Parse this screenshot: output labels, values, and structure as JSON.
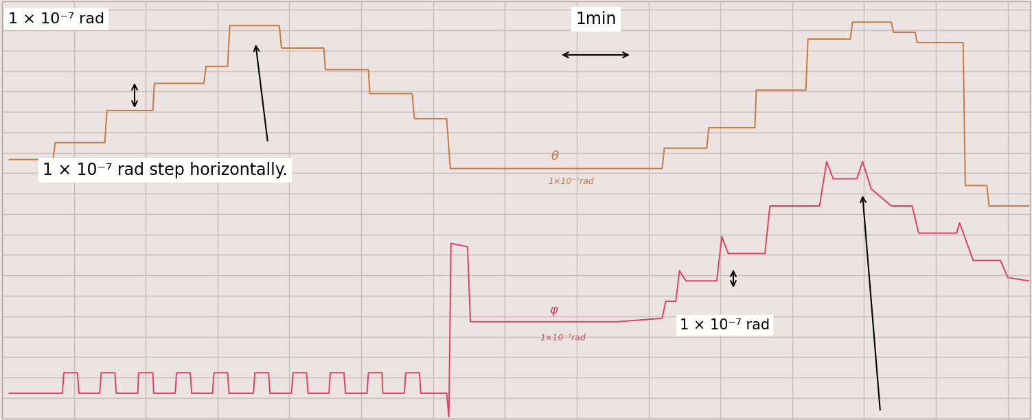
{
  "chart_data": {
    "type": "line",
    "xlim": [
      0,
      14.31
    ],
    "ylim": [
      0,
      2.04e-06
    ],
    "xticks": [
      0,
      1,
      2,
      3,
      4,
      5,
      6,
      7,
      8,
      9,
      10,
      11,
      12,
      13,
      14
    ],
    "yticks": [
      0,
      1e-07,
      2e-07,
      3e-07,
      4e-07,
      5e-07,
      6e-07,
      7e-07,
      8e-07,
      9e-07,
      1e-06,
      1.1e-06,
      1.2e-06,
      1.3e-06,
      1.4e-06,
      1.5e-06,
      1.6e-06,
      1.7e-06,
      1.8e-06,
      1.9e-06,
      2e-06
    ],
    "grid": true,
    "tick_labels": false,
    "annotations": [
      "1 × 10⁻⁷ rad",
      "1min",
      "1 × 10⁻⁷ rad step horizontally.",
      "1×10⁻⁷rad",
      "1×10⁻⁷rad",
      "1 × 10⁻⁷ rad"
    ],
    "series": [
      {
        "name": "θ",
        "color": "#c8783a",
        "x": [
          0.1,
          0.71,
          0.74,
          1.43,
          1.46,
          2.1,
          2.12,
          2.81,
          2.84,
          3.14,
          3.17,
          3.86,
          3.89,
          4.48,
          4.5,
          5.1,
          5.12,
          5.71,
          5.74,
          6.19,
          6.24,
          9.19,
          9.22,
          9.81,
          9.84,
          10.48,
          10.5,
          11.19,
          11.22,
          11.81,
          11.84,
          12.38,
          12.41,
          12.71,
          12.74,
          13.38,
          13.41,
          13.71,
          13.74,
          14.29
        ],
        "values": [
          1.267e-06,
          1.267e-06,
          1.35e-06,
          1.35e-06,
          1.507e-06,
          1.507e-06,
          1.64e-06,
          1.64e-06,
          1.723e-06,
          1.723e-06,
          1.923e-06,
          1.923e-06,
          1.813e-06,
          1.813e-06,
          1.707e-06,
          1.707e-06,
          1.59e-06,
          1.59e-06,
          1.467e-06,
          1.467e-06,
          1.223e-06,
          1.223e-06,
          1.323e-06,
          1.323e-06,
          1.423e-06,
          1.423e-06,
          1.607e-06,
          1.607e-06,
          1.857e-06,
          1.857e-06,
          1.94e-06,
          1.94e-06,
          1.89e-06,
          1.89e-06,
          1.84e-06,
          1.84e-06,
          1.14e-06,
          1.14e-06,
          1.04e-06,
          1.04e-06
        ]
      },
      {
        "name": "φ",
        "color": "#e0405e",
        "x": [
          0.1,
          0.84,
          0.86,
          1.05,
          1.07,
          1.36,
          1.38,
          1.57,
          1.59,
          1.89,
          1.9,
          2.1,
          2.11,
          2.41,
          2.43,
          2.62,
          2.64,
          2.93,
          2.95,
          3.14,
          3.16,
          3.5,
          3.52,
          3.71,
          3.73,
          4.03,
          4.05,
          4.24,
          4.26,
          4.55,
          4.57,
          4.76,
          4.78,
          5.08,
          5.1,
          5.29,
          5.3,
          5.6,
          5.62,
          5.81,
          5.83,
          6.19,
          6.22,
          6.25,
          6.48,
          6.52,
          8.57,
          9.19,
          9.24,
          9.38,
          9.43,
          9.52,
          9.95,
          10.02,
          10.11,
          10.62,
          10.69,
          11.38,
          11.48,
          11.57,
          11.9,
          11.98,
          12.1,
          12.38,
          12.67,
          12.76,
          13.29,
          13.33,
          13.52,
          13.9,
          14.0,
          14.29
        ],
        "values": [
          1.23e-07,
          1.23e-07,
          2.23e-07,
          2.23e-07,
          1.23e-07,
          1.23e-07,
          2.23e-07,
          2.23e-07,
          1.23e-07,
          1.23e-07,
          2.23e-07,
          2.23e-07,
          1.23e-07,
          1.23e-07,
          2.23e-07,
          2.23e-07,
          1.23e-07,
          1.23e-07,
          2.23e-07,
          2.23e-07,
          1.23e-07,
          1.23e-07,
          2.23e-07,
          2.23e-07,
          1.23e-07,
          1.23e-07,
          2.23e-07,
          2.23e-07,
          1.23e-07,
          1.23e-07,
          2.23e-07,
          2.23e-07,
          1.23e-07,
          1.23e-07,
          2.23e-07,
          2.23e-07,
          1.23e-07,
          1.23e-07,
          2.23e-07,
          2.23e-07,
          1.23e-07,
          1.23e-07,
          7e-09,
          8.57e-07,
          8.4e-07,
          4.73e-07,
          4.73e-07,
          4.9e-07,
          5.73e-07,
          5.73e-07,
          7.23e-07,
          6.73e-07,
          6.73e-07,
          8.9e-07,
          8.07e-07,
          8.07e-07,
          1.04e-06,
          1.04e-06,
          1.257e-06,
          1.173e-06,
          1.173e-06,
          1.257e-06,
          1.123e-06,
          1.04e-06,
          1.04e-06,
          9.07e-07,
          9.07e-07,
          9.57e-07,
          7.73e-07,
          7.73e-07,
          6.9e-07,
          6.73e-07
        ]
      }
    ]
  }
}
